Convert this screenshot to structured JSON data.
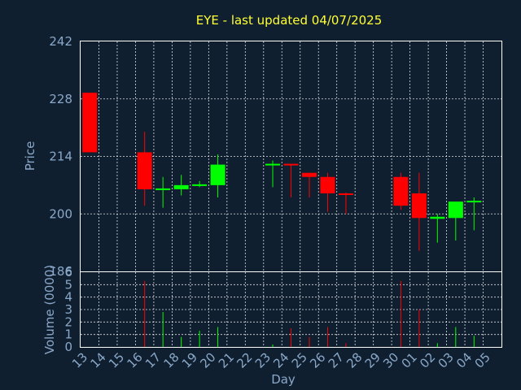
{
  "chart_data": {
    "type": "candlestick",
    "title": "EYE - last updated 04/07/2025",
    "xlabel": "Day",
    "ylabel": "Price",
    "volume_label": "Volume (0000)",
    "price_ylim": [
      186,
      242
    ],
    "price_ticks": [
      186,
      200,
      214,
      228,
      242
    ],
    "volume_ylim": [
      0,
      6
    ],
    "volume_ticks": [
      0,
      1,
      2,
      3,
      4,
      5,
      6
    ],
    "x_ticks": [
      "13",
      "14",
      "15",
      "16",
      "17",
      "18",
      "19",
      "20",
      "21",
      "22",
      "23",
      "24",
      "25",
      "26",
      "27",
      "28",
      "29",
      "30",
      "01",
      "02",
      "03",
      "04",
      "05"
    ],
    "grid": true,
    "colors": {
      "up": "#00ff00",
      "down": "#ff0000"
    },
    "candles": [
      {
        "day": "13",
        "open": 229.5,
        "close": 215.0,
        "high": 229.5,
        "low": 215.0,
        "volume": 0
      },
      {
        "day": "16",
        "open": 215.0,
        "close": 206.0,
        "high": 220.0,
        "low": 202.0,
        "volume": 5.3
      },
      {
        "day": "17",
        "open": 205.8,
        "close": 206.2,
        "high": 209.0,
        "low": 201.5,
        "volume": 2.8
      },
      {
        "day": "18",
        "open": 206.0,
        "close": 207.0,
        "high": 209.5,
        "low": 204.5,
        "volume": 0.8
      },
      {
        "day": "19",
        "open": 206.8,
        "close": 207.2,
        "high": 208.0,
        "low": 206.5,
        "volume": 1.3
      },
      {
        "day": "20",
        "open": 207.0,
        "close": 212.0,
        "high": 214.5,
        "low": 204.0,
        "volume": 1.6
      },
      {
        "day": "23",
        "open": 211.8,
        "close": 212.2,
        "high": 213.0,
        "low": 206.5,
        "volume": 0.2
      },
      {
        "day": "24",
        "open": 212.2,
        "close": 211.8,
        "high": 212.2,
        "low": 204.0,
        "volume": 1.5
      },
      {
        "day": "25",
        "open": 210.0,
        "close": 209.0,
        "high": 210.0,
        "low": 204.0,
        "volume": 0.8
      },
      {
        "day": "26",
        "open": 209.0,
        "close": 205.0,
        "high": 210.0,
        "low": 200.5,
        "volume": 1.6
      },
      {
        "day": "27",
        "open": 205.0,
        "close": 204.8,
        "high": 205.2,
        "low": 200.0,
        "volume": 0.3
      },
      {
        "day": "30",
        "open": 209.0,
        "close": 202.0,
        "high": 210.0,
        "low": 201.0,
        "volume": 5.3
      },
      {
        "day": "01",
        "open": 205.0,
        "close": 199.0,
        "high": 210.0,
        "low": 191.0,
        "volume": 3.0
      },
      {
        "day": "02",
        "open": 198.8,
        "close": 199.3,
        "high": 200.0,
        "low": 193.0,
        "volume": 0.3
      },
      {
        "day": "03",
        "open": 199.0,
        "close": 203.0,
        "high": 203.0,
        "low": 193.5,
        "volume": 1.6
      },
      {
        "day": "04",
        "open": 202.8,
        "close": 203.2,
        "high": 204.0,
        "low": 196.0,
        "volume": 0.9
      }
    ]
  }
}
